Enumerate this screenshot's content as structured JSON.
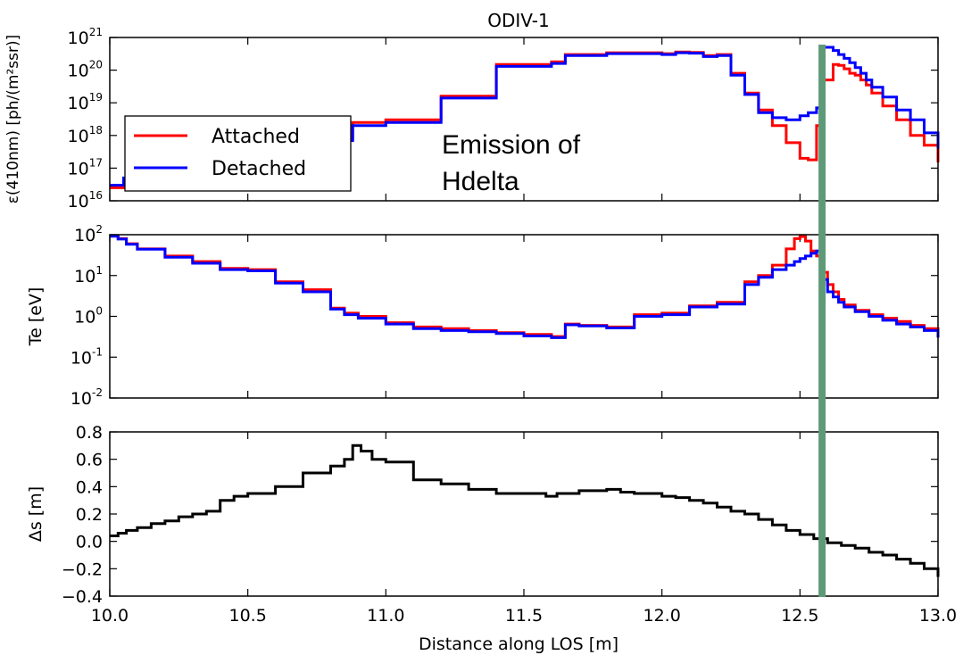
{
  "title": "ODIV-1",
  "colors": {
    "attached": "#ff0000",
    "detached": "#0000ff",
    "delta": "#000000",
    "marker": "#5f9a78"
  },
  "chart_data": [
    {
      "type": "line",
      "panel": "emission",
      "ylabel": "ε(410nm) [ph/(m²ssr)]",
      "yscale": "log",
      "ylim": [
        1e+16,
        1e+21
      ],
      "yticks": [
        [
          "10",
          "16"
        ],
        [
          "10",
          "17"
        ],
        [
          "10",
          "18"
        ],
        [
          "10",
          "19"
        ],
        [
          "10",
          "20"
        ],
        [
          "10",
          "21"
        ]
      ],
      "xlim": [
        10.0,
        13.0
      ],
      "annotation": [
        "Emission of",
        "Hdelta"
      ],
      "legend": {
        "position": "left",
        "entries": [
          "Attached",
          "Detached"
        ]
      },
      "series": [
        {
          "name": "Attached",
          "x": [
            10.0,
            10.05,
            10.1,
            10.6,
            10.7,
            10.85,
            10.88,
            11.0,
            11.2,
            11.4,
            11.6,
            11.65,
            11.8,
            12.0,
            12.05,
            12.1,
            12.15,
            12.2,
            12.25,
            12.3,
            12.35,
            12.4,
            12.45,
            12.5,
            12.53,
            12.56,
            12.58,
            12.62,
            12.64,
            12.66,
            12.68,
            12.7,
            12.72,
            12.74,
            12.76,
            12.8,
            12.85,
            12.9,
            12.95,
            13.0
          ],
          "y": [
            2.5e+16,
            4e+16,
            1e+17,
            6e+17,
            7e+17,
            8e+17,
            2.5e+18,
            3e+18,
            1.6e+19,
            1.5e+20,
            1.8e+20,
            3e+20,
            3.4e+20,
            3.2e+20,
            3.6e+20,
            3.5e+20,
            2.8e+20,
            3e+20,
            8e+19,
            2e+19,
            6e+18,
            2e+18,
            6e+17,
            2e+17,
            1.8e+17,
            2e+18,
            5e+19,
            1.5e+20,
            1.4e+20,
            1.1e+20,
            8e+19,
            7e+19,
            5e+19,
            3.5e+19,
            2e+19,
            8e+18,
            3e+18,
            1e+18,
            5e+17,
            1.5e+17
          ]
        },
        {
          "name": "Detached",
          "x": [
            10.0,
            10.05,
            10.1,
            10.6,
            10.7,
            10.85,
            10.88,
            11.0,
            11.2,
            11.4,
            11.6,
            11.65,
            11.8,
            12.0,
            12.05,
            12.1,
            12.15,
            12.2,
            12.25,
            12.3,
            12.35,
            12.4,
            12.45,
            12.5,
            12.53,
            12.56,
            12.58,
            12.62,
            12.64,
            12.66,
            12.68,
            12.7,
            12.72,
            12.74,
            12.76,
            12.8,
            12.85,
            12.9,
            12.95,
            13.0
          ],
          "y": [
            3e+16,
            5e+16,
            1e+17,
            5e+17,
            6e+17,
            7e+17,
            2e+18,
            2.5e+18,
            1.4e+19,
            1.3e+20,
            1.6e+20,
            2.8e+20,
            3.2e+20,
            3e+20,
            3.4e+20,
            3.3e+20,
            2.6e+20,
            2.8e+20,
            7e+19,
            1.8e+19,
            5e+18,
            3.5e+18,
            3e+18,
            4e+18,
            5e+18,
            7e+18,
            5e+20,
            4e+20,
            3e+20,
            2.3e+20,
            1.7e+20,
            1.2e+20,
            8e+19,
            5e+19,
            3e+19,
            1.5e+19,
            6e+18,
            3e+18,
            1.2e+18,
            4e+17
          ]
        }
      ]
    },
    {
      "type": "line",
      "panel": "temperature",
      "ylabel": "Te [eV]",
      "yscale": "log",
      "ylim": [
        0.01,
        100
      ],
      "yticks": [
        [
          "10",
          "-2"
        ],
        [
          "10",
          "-1"
        ],
        [
          "10",
          "0"
        ],
        [
          "10",
          "1"
        ],
        [
          "10",
          "2"
        ]
      ],
      "xlim": [
        10.0,
        13.0
      ],
      "series": [
        {
          "name": "Attached",
          "x": [
            10.0,
            10.03,
            10.06,
            10.1,
            10.2,
            10.3,
            10.4,
            10.5,
            10.6,
            10.7,
            10.8,
            10.85,
            10.9,
            11.0,
            11.1,
            11.2,
            11.3,
            11.4,
            11.5,
            11.6,
            11.65,
            11.7,
            11.8,
            11.9,
            12.0,
            12.1,
            12.2,
            12.3,
            12.35,
            12.4,
            12.45,
            12.48,
            12.5,
            12.52,
            12.54,
            12.56,
            12.58,
            12.6,
            12.62,
            12.64,
            12.66,
            12.7,
            12.75,
            12.8,
            12.85,
            12.9,
            12.95,
            13.0
          ],
          "y": [
            95,
            80,
            60,
            45,
            30,
            22,
            15,
            14,
            7,
            4.5,
            1.6,
            1.2,
            1.0,
            0.7,
            0.55,
            0.5,
            0.45,
            0.4,
            0.36,
            0.32,
            0.65,
            0.6,
            0.55,
            1.1,
            1.2,
            1.8,
            2.2,
            7,
            10,
            18,
            45,
            80,
            90,
            70,
            40,
            30,
            12,
            6,
            4,
            2.6,
            1.9,
            1.4,
            1.1,
            0.9,
            0.75,
            0.6,
            0.5,
            0.4
          ]
        },
        {
          "name": "Detached",
          "x": [
            10.0,
            10.03,
            10.06,
            10.1,
            10.2,
            10.3,
            10.4,
            10.5,
            10.6,
            10.7,
            10.8,
            10.85,
            10.9,
            11.0,
            11.1,
            11.2,
            11.3,
            11.4,
            11.5,
            11.6,
            11.65,
            11.7,
            11.8,
            11.9,
            12.0,
            12.1,
            12.2,
            12.3,
            12.35,
            12.4,
            12.45,
            12.48,
            12.5,
            12.52,
            12.54,
            12.56,
            12.58,
            12.6,
            12.62,
            12.64,
            12.66,
            12.7,
            12.75,
            12.8,
            12.85,
            12.9,
            12.95,
            13.0
          ],
          "y": [
            92,
            78,
            58,
            44,
            28,
            20,
            14,
            13,
            6.5,
            4,
            1.5,
            1.1,
            0.9,
            0.65,
            0.5,
            0.45,
            0.42,
            0.38,
            0.33,
            0.3,
            0.62,
            0.58,
            0.52,
            1.0,
            1.1,
            1.7,
            2.0,
            6,
            9,
            14,
            18,
            22,
            26,
            30,
            35,
            40,
            8,
            4,
            3,
            2.2,
            1.7,
            1.3,
            1.0,
            0.8,
            0.65,
            0.55,
            0.45,
            0.3
          ]
        }
      ]
    },
    {
      "type": "line",
      "panel": "delta",
      "ylabel": "Δs [m]",
      "xlabel": "Distance along LOS [m]",
      "ylim": [
        -0.4,
        0.8
      ],
      "yticks": [
        "−0.4",
        "−0.2",
        "0.0",
        "0.2",
        "0.4",
        "0.6",
        "0.8"
      ],
      "xlim": [
        10.0,
        13.0
      ],
      "xticks": [
        "10.0",
        "10.5",
        "11.0",
        "11.5",
        "12.0",
        "12.5",
        "13.0"
      ],
      "marker_x": 12.58,
      "series": [
        {
          "name": "",
          "x": [
            10.0,
            10.03,
            10.06,
            10.1,
            10.15,
            10.2,
            10.25,
            10.3,
            10.35,
            10.4,
            10.45,
            10.5,
            10.6,
            10.7,
            10.8,
            10.85,
            10.88,
            10.91,
            10.95,
            11.0,
            11.1,
            11.2,
            11.3,
            11.4,
            11.5,
            11.58,
            11.62,
            11.7,
            11.8,
            11.85,
            11.9,
            12.0,
            12.05,
            12.1,
            12.15,
            12.2,
            12.25,
            12.3,
            12.35,
            12.4,
            12.45,
            12.5,
            12.55,
            12.6,
            12.65,
            12.7,
            12.75,
            12.8,
            12.85,
            12.9,
            12.95,
            13.0
          ],
          "y": [
            0.04,
            0.06,
            0.08,
            0.1,
            0.13,
            0.15,
            0.18,
            0.2,
            0.22,
            0.3,
            0.33,
            0.35,
            0.4,
            0.5,
            0.55,
            0.6,
            0.7,
            0.66,
            0.6,
            0.58,
            0.45,
            0.42,
            0.38,
            0.35,
            0.35,
            0.33,
            0.35,
            0.37,
            0.38,
            0.36,
            0.35,
            0.33,
            0.32,
            0.3,
            0.28,
            0.25,
            0.22,
            0.2,
            0.16,
            0.12,
            0.08,
            0.05,
            0.02,
            -0.01,
            -0.03,
            -0.05,
            -0.08,
            -0.1,
            -0.13,
            -0.16,
            -0.2,
            -0.26
          ]
        }
      ]
    }
  ]
}
